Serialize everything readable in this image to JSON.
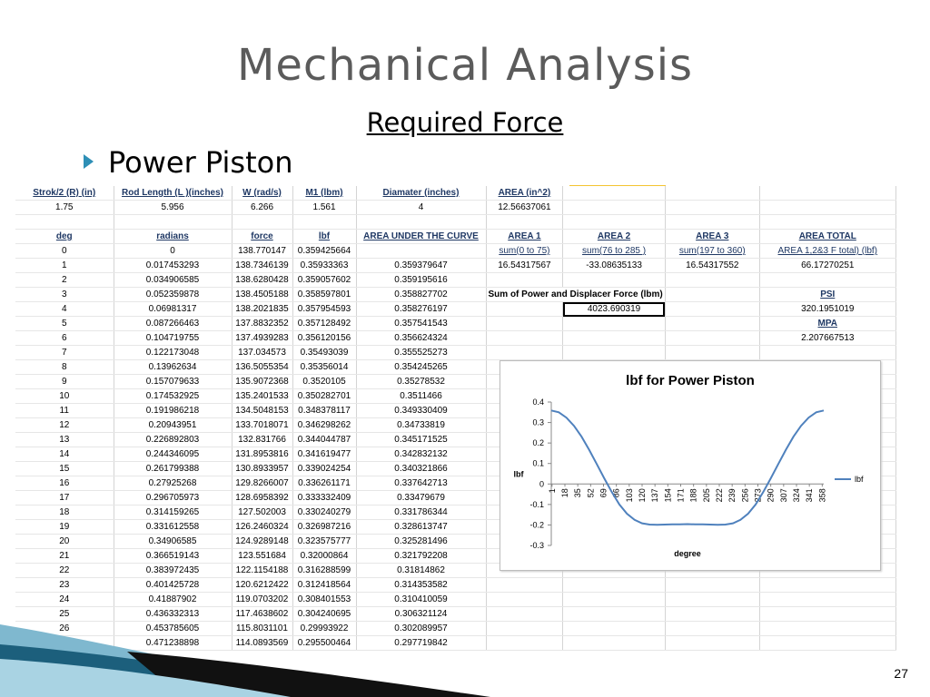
{
  "slide": {
    "title": "Mechanical Analysis",
    "subtitle": "Required Force",
    "bullet": "Power Piston",
    "page_number": "27"
  },
  "params_header": [
    "Strok/2 (R) (in)",
    "Rod Length (L )(inches)",
    "W (rad/s)",
    "M1 (lbm)",
    "Diamater (inches)",
    "AREA (in^2)"
  ],
  "params_values": [
    "1.75",
    "5.956",
    "6.266",
    "1.561",
    "4",
    "12.56637061"
  ],
  "table_header": [
    "deg",
    "radians",
    "force",
    "lbf",
    "AREA UNDER THE CURVE",
    "AREA 1",
    "AREA 2",
    "AREA 3",
    "AREA TOTAL"
  ],
  "area_labels": [
    "sum(0 to 75)",
    "sum(76 to 285 )",
    "sum(197 to 360)",
    "AREA 1,2&3 F total) (lbf)"
  ],
  "area_values": [
    "16.54317567",
    "-33.08635133",
    "16.54317552",
    "66.17270251"
  ],
  "sum_label": "Sum of  Power and Displacer Force (lbm)",
  "sum_value": "4023.690319",
  "psi_label": "PSI",
  "psi_value": "320.1951019",
  "mpa_label": "MPA",
  "mpa_value": "2.207667513",
  "rows": [
    [
      "0",
      "0",
      "138.770147",
      "0.359425664",
      ""
    ],
    [
      "1",
      "0.017453293",
      "138.7346139",
      "0.35933363",
      "0.359379647"
    ],
    [
      "2",
      "0.034906585",
      "138.6280428",
      "0.359057602",
      "0.359195616"
    ],
    [
      "3",
      "0.052359878",
      "138.4505188",
      "0.358597801",
      "0.358827702"
    ],
    [
      "4",
      "0.06981317",
      "138.2021835",
      "0.357954593",
      "0.358276197"
    ],
    [
      "5",
      "0.087266463",
      "137.8832352",
      "0.357128492",
      "0.357541543"
    ],
    [
      "6",
      "0.104719755",
      "137.4939283",
      "0.356120156",
      "0.356624324"
    ],
    [
      "7",
      "0.122173048",
      "137.034573",
      "0.35493039",
      "0.355525273"
    ],
    [
      "8",
      "0.13962634",
      "136.5055354",
      "0.35356014",
      "0.354245265"
    ],
    [
      "9",
      "0.157079633",
      "135.9072368",
      "0.3520105",
      "0.35278532"
    ],
    [
      "10",
      "0.174532925",
      "135.2401533",
      "0.350282701",
      "0.3511466"
    ],
    [
      "11",
      "0.191986218",
      "134.5048153",
      "0.348378117",
      "0.349330409"
    ],
    [
      "12",
      "0.20943951",
      "133.7018071",
      "0.346298262",
      "0.34733819"
    ],
    [
      "13",
      "0.226892803",
      "132.831766",
      "0.344044787",
      "0.345171525"
    ],
    [
      "14",
      "0.244346095",
      "131.8953816",
      "0.341619477",
      "0.342832132"
    ],
    [
      "15",
      "0.261799388",
      "130.8933957",
      "0.339024254",
      "0.340321866"
    ],
    [
      "16",
      "0.27925268",
      "129.8266007",
      "0.336261171",
      "0.337642713"
    ],
    [
      "17",
      "0.296705973",
      "128.6958392",
      "0.333332409",
      "0.33479679"
    ],
    [
      "18",
      "0.314159265",
      "127.502003",
      "0.330240279",
      "0.331786344"
    ],
    [
      "19",
      "0.331612558",
      "126.2460324",
      "0.326987216",
      "0.328613747"
    ],
    [
      "20",
      "0.34906585",
      "124.9289148",
      "0.323575777",
      "0.325281496"
    ],
    [
      "21",
      "0.366519143",
      "123.551684",
      "0.32000864",
      "0.321792208"
    ],
    [
      "22",
      "0.383972435",
      "122.1154188",
      "0.316288599",
      "0.31814862"
    ],
    [
      "23",
      "0.401425728",
      "120.6212422",
      "0.312418564",
      "0.314353582"
    ],
    [
      "24",
      "0.41887902",
      "119.0703202",
      "0.308401553",
      "0.310410059"
    ],
    [
      "25",
      "0.436332313",
      "117.4638602",
      "0.304240695",
      "0.306321124"
    ],
    [
      "26",
      "0.453785605",
      "115.8031101",
      "0.29993922",
      "0.302089957"
    ],
    [
      "27",
      "0.471238898",
      "114.0893569",
      "0.295500464",
      "0.297719842"
    ]
  ],
  "chart_data": {
    "type": "line",
    "title": "lbf for Power Piston",
    "xlabel": "degree",
    "ylabel": "lbf",
    "ylim": [
      -0.3,
      0.4
    ],
    "yticks": [
      "0.4",
      "0.3",
      "0.2",
      "0.1",
      "0",
      "-0.1",
      "-0.2",
      "-0.3"
    ],
    "xticks": [
      "1",
      "18",
      "35",
      "52",
      "69",
      "86",
      "103",
      "120",
      "137",
      "154",
      "171",
      "188",
      "205",
      "222",
      "239",
      "256",
      "273",
      "290",
      "307",
      "324",
      "341",
      "358"
    ],
    "legend": "right",
    "grid": false,
    "series": [
      {
        "name": "lbf",
        "color": "#4f81bd",
        "x": [
          0,
          10,
          20,
          30,
          40,
          50,
          60,
          70,
          80,
          90,
          100,
          110,
          120,
          130,
          140,
          150,
          160,
          170,
          180,
          190,
          200,
          210,
          220,
          230,
          240,
          250,
          260,
          270,
          280,
          290,
          300,
          310,
          320,
          330,
          340,
          350,
          360
        ],
        "y": [
          0.359,
          0.35,
          0.324,
          0.284,
          0.231,
          0.167,
          0.098,
          0.028,
          -0.04,
          -0.1,
          -0.145,
          -0.175,
          -0.192,
          -0.198,
          -0.199,
          -0.198,
          -0.197,
          -0.197,
          -0.196,
          -0.197,
          -0.197,
          -0.198,
          -0.199,
          -0.198,
          -0.192,
          -0.175,
          -0.145,
          -0.1,
          -0.04,
          0.028,
          0.098,
          0.167,
          0.231,
          0.284,
          0.324,
          0.35,
          0.359
        ]
      }
    ]
  }
}
